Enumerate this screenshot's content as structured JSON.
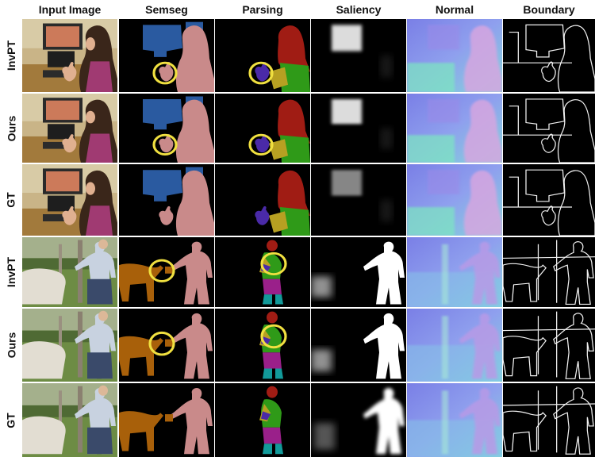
{
  "columns": [
    "Input Image",
    "Semseg",
    "Parsing",
    "Saliency",
    "Normal",
    "Boundary"
  ],
  "rows": [
    "InvPT",
    "Ours",
    "GT",
    "InvPT",
    "Ours",
    "GT"
  ],
  "colors": {
    "semseg_person": "#c98a8a",
    "semseg_monitor": "#2a5aa0",
    "semseg_animal": "#a8600a",
    "parsing_hair": "#a01c14",
    "parsing_torso": "#2f9a18",
    "parsing_arm": "#b7a022",
    "parsing_hand": "#4a2aa8",
    "parsing_legs": "#9a208a",
    "parsing_feet": "#129a9a",
    "highlight_circle": "#f0e040"
  }
}
